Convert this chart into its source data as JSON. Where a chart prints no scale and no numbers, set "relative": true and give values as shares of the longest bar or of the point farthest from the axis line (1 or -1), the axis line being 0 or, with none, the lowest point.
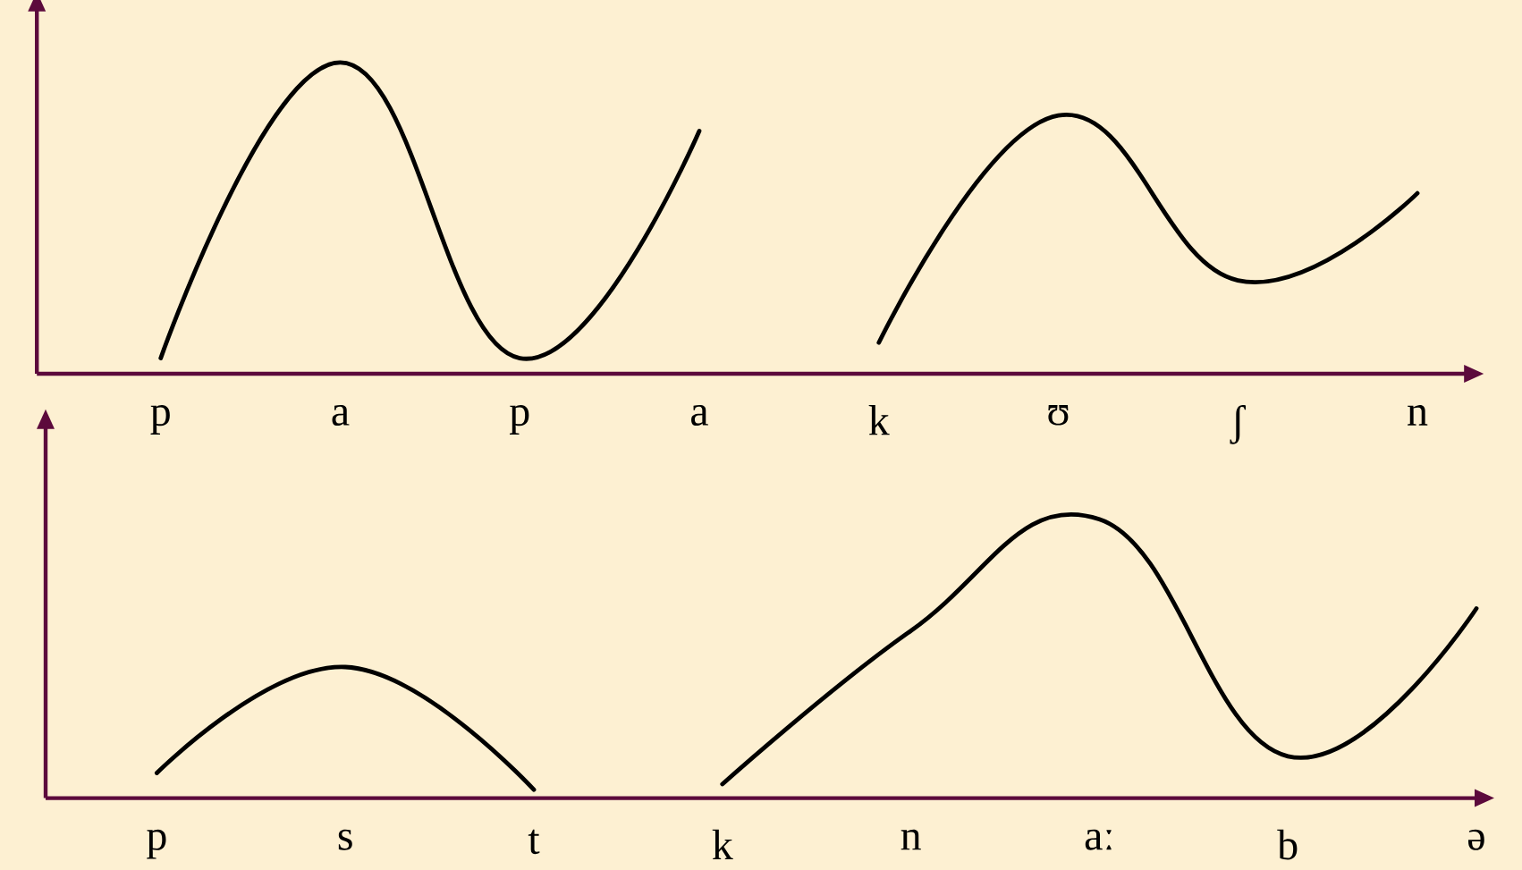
{
  "chart_data": [
    {
      "type": "line",
      "relative": true,
      "categories": [
        "p",
        "a",
        "p",
        "a",
        "k",
        "ʊ",
        "ʃ",
        "n"
      ],
      "series": [
        {
          "color": "#000000",
          "values": [
            0.05,
            1,
            0.05,
            0.78,
            null,
            null,
            null,
            null
          ]
        },
        {
          "color": "#000000",
          "values": [
            null,
            null,
            null,
            null,
            0.1,
            0.83,
            0.3,
            0.58
          ]
        }
      ]
    },
    {
      "type": "line",
      "relative": true,
      "categories": [
        "p",
        "s",
        "t",
        "k",
        "n",
        "aː",
        "b",
        "ə"
      ],
      "series": [
        {
          "color": "#000000",
          "values": [
            0.09,
            0.47,
            0.03,
            null,
            null,
            null,
            null,
            null
          ]
        },
        {
          "color": "#000000",
          "values": [
            null,
            null,
            null,
            0.05,
            0.6,
            1,
            0.15,
            0.68
          ]
        }
      ]
    }
  ]
}
